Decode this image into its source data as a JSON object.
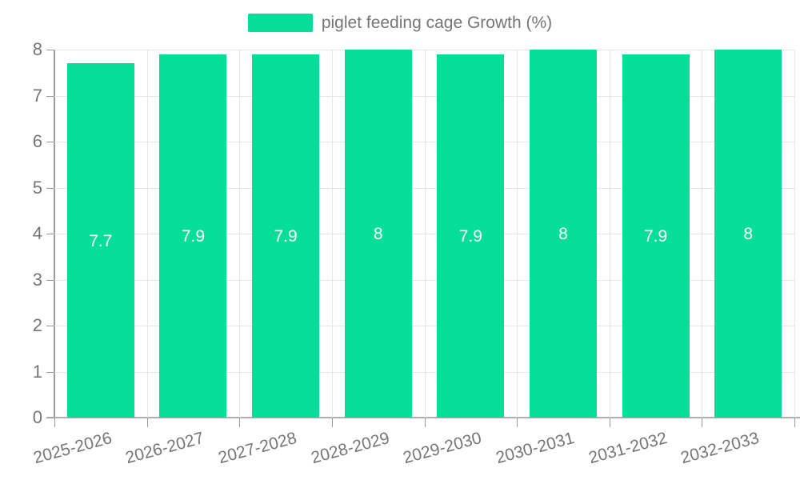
{
  "chart_data": {
    "type": "bar",
    "title": "",
    "legend": "piglet feeding cage Growth (%)",
    "categories": [
      "2025-2026",
      "2026-2027",
      "2027-2028",
      "2028-2029",
      "2029-2030",
      "2030-2031",
      "2031-2032",
      "2032-2033"
    ],
    "values": [
      7.7,
      7.9,
      7.9,
      8,
      7.9,
      8,
      7.9,
      8
    ],
    "value_labels": [
      "7.7",
      "7.9",
      "7.9",
      "8",
      "7.9",
      "8",
      "7.9",
      "8"
    ],
    "xlabel": "",
    "ylabel": "",
    "ylim": [
      0,
      8
    ],
    "y_ticks": [
      "0",
      "1",
      "2",
      "3",
      "4",
      "5",
      "6",
      "7",
      "8"
    ],
    "grid": true,
    "legend_position": "top-center",
    "colors": {
      "bar": "#05de97",
      "bar_label": "#ffffff",
      "axis": "#9a9a9a",
      "gridline": "#e6e6e6",
      "tick_text": "#757575",
      "legend_text": "#757575"
    }
  }
}
